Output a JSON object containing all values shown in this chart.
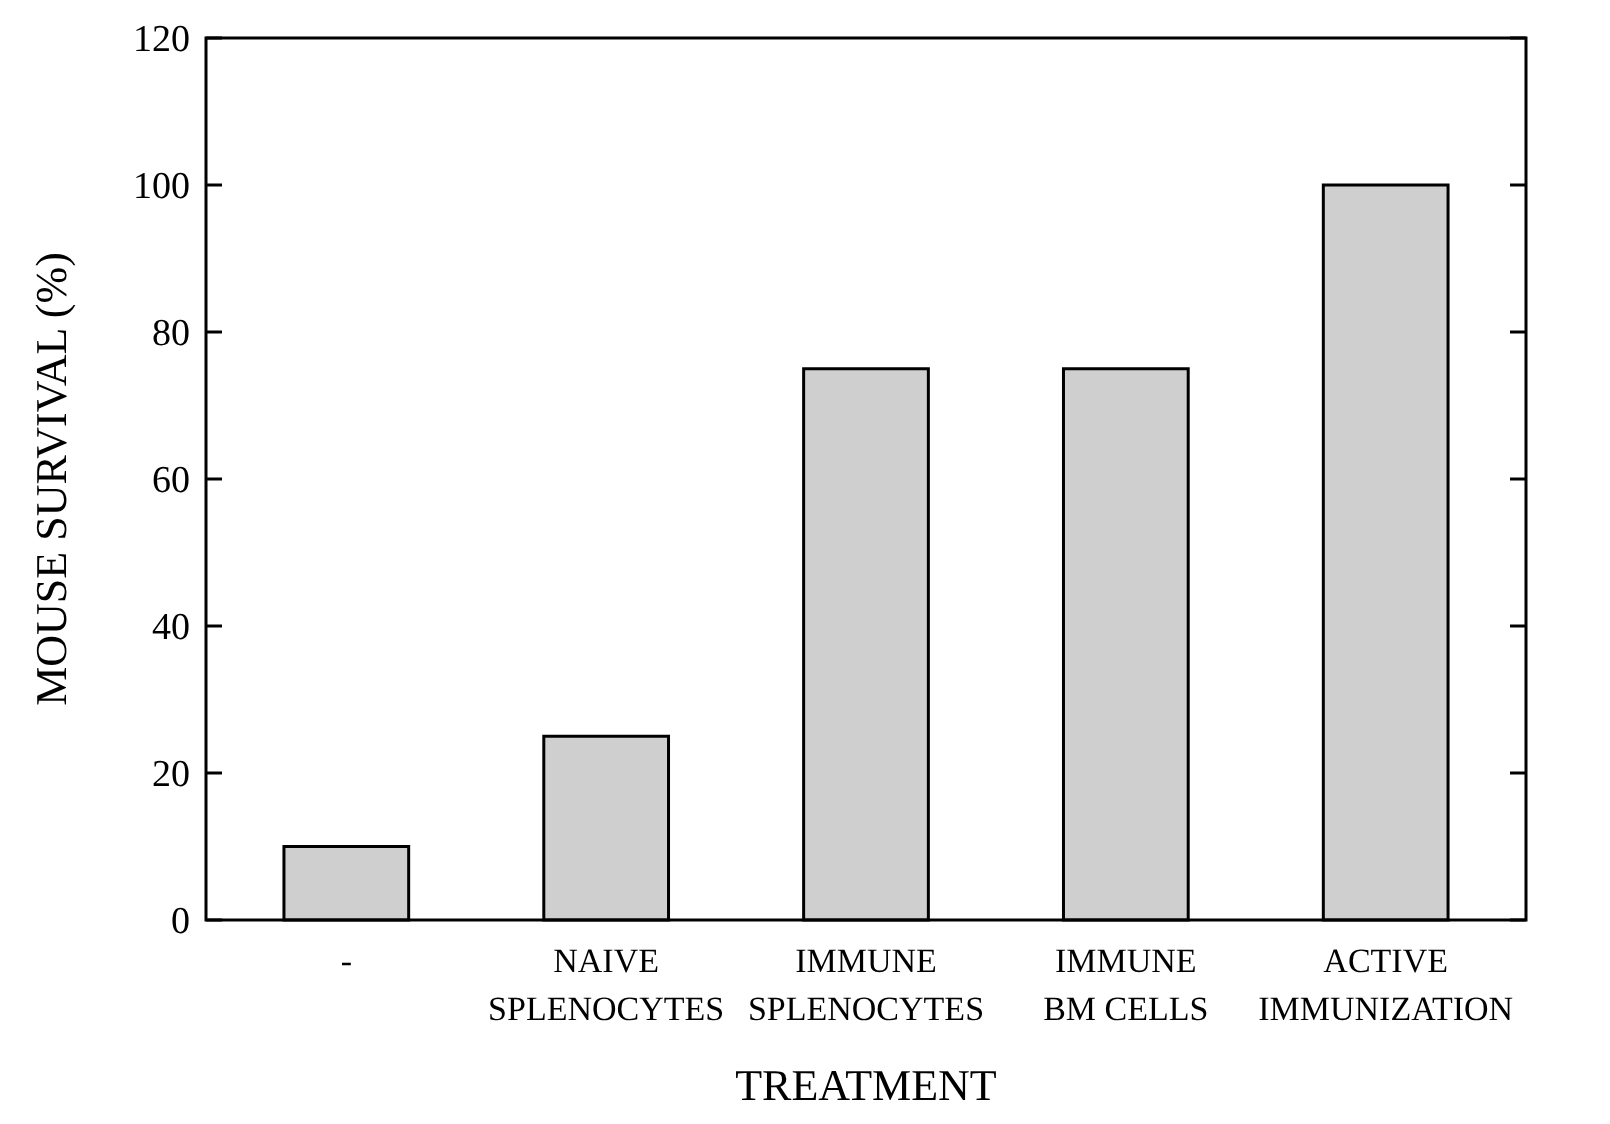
{
  "chart_data": {
    "type": "bar",
    "xlabel": "TREATMENT",
    "ylabel": "MOUSE SURVIVAL (%)",
    "categories": [
      "-",
      "NAIVE\nSPLENOCYTES",
      "IMMUNE\nSPLENOCYTES",
      "IMMUNE\nBM CELLS",
      "ACTIVE\nIMMUNIZATION"
    ],
    "values": [
      10,
      25,
      75,
      75,
      100
    ],
    "color": "#cfcfcf",
    "ylim": [
      0,
      120
    ],
    "yticks": [
      0,
      20,
      40,
      60,
      80,
      100,
      120
    ],
    "grid": false
  }
}
